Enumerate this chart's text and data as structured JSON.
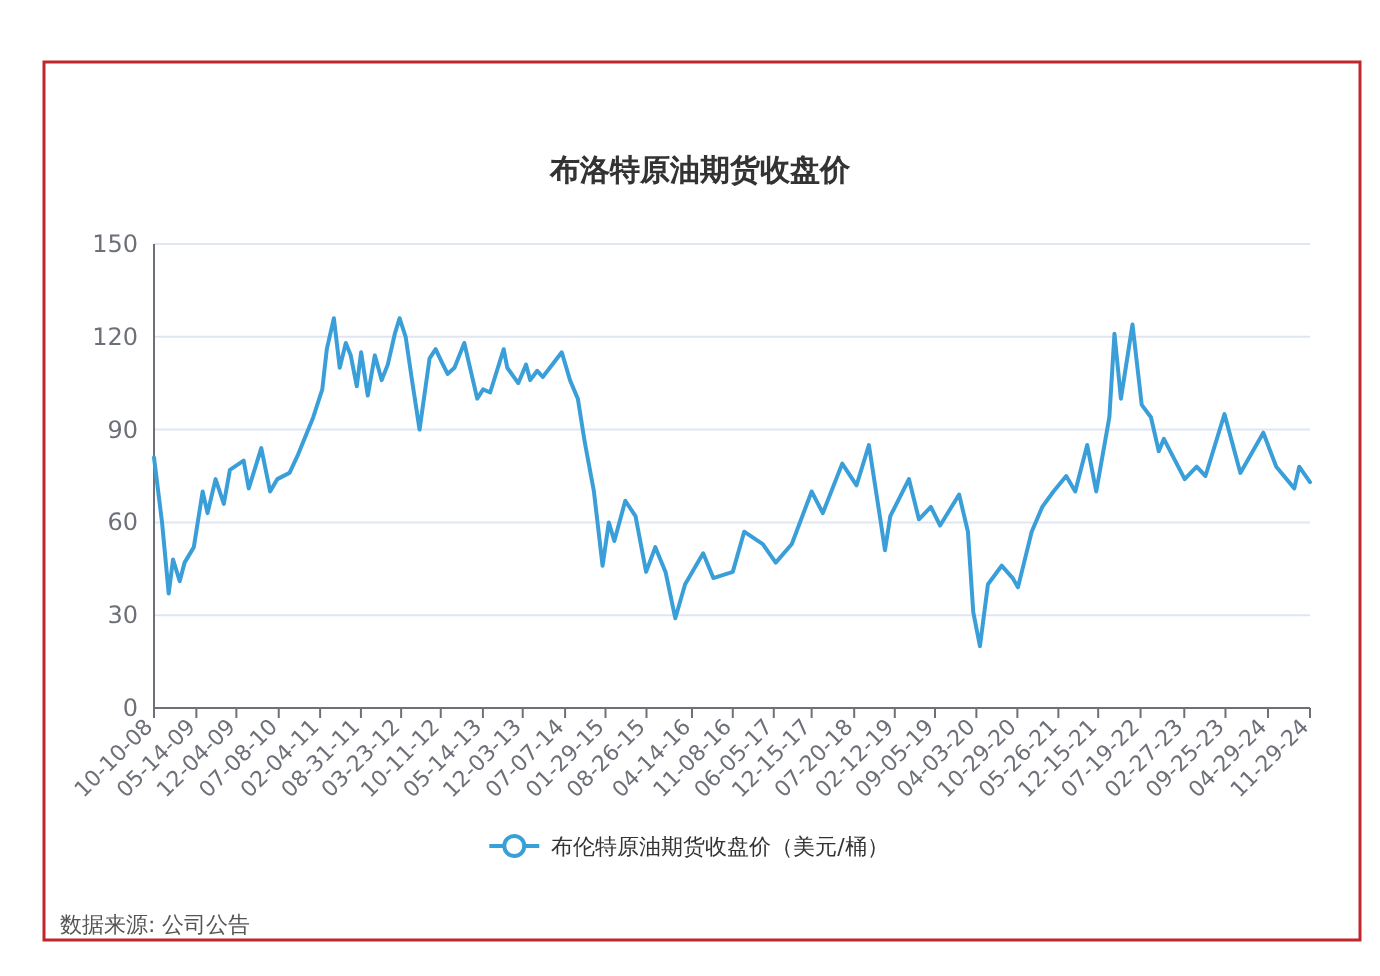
{
  "chart_data": {
    "type": "line",
    "title": "布洛特原油期货收盘价",
    "x": [
      "2008-10-10",
      "2008-11-20",
      "2008-12-24",
      "2009-01-15",
      "2009-02-18",
      "2009-03-15",
      "2009-05-01",
      "2009-06-15",
      "2009-07-10",
      "2009-08-20",
      "2009-10-01",
      "2009-11-01",
      "2010-01-10",
      "2010-02-05",
      "2010-04-10",
      "2010-05-25",
      "2010-07-01",
      "2010-09-01",
      "2010-10-15",
      "2010-12-31",
      "2011-02-15",
      "2011-03-10",
      "2011-04-15",
      "2011-05-15",
      "2011-06-15",
      "2011-07-10",
      "2011-08-10",
      "2011-09-01",
      "2011-10-05",
      "2011-11-10",
      "2011-12-15",
      "2012-01-15",
      "2012-02-20",
      "2012-03-15",
      "2012-04-15",
      "2012-05-15",
      "2012-06-25",
      "2012-08-15",
      "2012-09-15",
      "2012-10-15",
      "2012-11-15",
      "2012-12-20",
      "2013-02-08",
      "2013-04-15",
      "2013-05-15",
      "2013-06-20",
      "2013-08-28",
      "2013-09-15",
      "2013-11-10",
      "2013-12-20",
      "2014-01-10",
      "2014-02-15",
      "2014-03-15",
      "2014-06-20",
      "2014-08-01",
      "2014-09-10",
      "2014-10-15",
      "2014-12-01",
      "2015-01-14",
      "2015-02-15",
      "2015-03-15",
      "2015-05-10",
      "2015-07-01",
      "2015-08-24",
      "2015-10-10",
      "2015-12-01",
      "2016-01-20",
      "2016-03-10",
      "2016-06-10",
      "2016-08-01",
      "2016-11-08",
      "2017-01-05",
      "2017-04-10",
      "2017-06-15",
      "2017-09-05",
      "2017-12-15",
      "2018-02-10",
      "2018-05-20",
      "2018-08-01",
      "2018-10-03",
      "2018-12-05",
      "2018-12-24",
      "2019-01-20",
      "2019-04-25",
      "2019-06-15",
      "2019-08-15",
      "2019-10-01",
      "2020-01-06",
      "2020-02-20",
      "2020-03-18",
      "2020-04-21",
      "2020-06-01",
      "2020-08-10",
      "2020-10-05",
      "2020-11-01",
      "2021-01-10",
      "2021-03-05",
      "2021-05-01",
      "2021-07-05",
      "2021-08-20",
      "2021-10-20",
      "2021-12-05",
      "2022-02-10",
      "2022-03-08",
      "2022-04-10",
      "2022-06-08",
      "2022-07-25",
      "2022-09-10",
      "2022-10-20",
      "2022-11-15",
      "2023-03-01",
      "2023-05-01",
      "2023-06-15",
      "2023-09-20",
      "2023-12-10",
      "2024-04-05",
      "2024-06-10",
      "2024-09-10",
      "2024-10-05",
      "2024-11-29"
    ],
    "series": [
      {
        "name": "布伦特原油期货收盘价（美元/桶）",
        "color": "#3a9fd8",
        "values": [
          81,
          60,
          37,
          48,
          41,
          47,
          52,
          70,
          63,
          74,
          66,
          77,
          80,
          71,
          84,
          70,
          74,
          76,
          82,
          94,
          103,
          116,
          126,
          110,
          118,
          114,
          104,
          115,
          101,
          114,
          106,
          111,
          121,
          126,
          120,
          107,
          90,
          113,
          116,
          112,
          108,
          110,
          118,
          100,
          103,
          102,
          116,
          110,
          105,
          111,
          106,
          109,
          107,
          115,
          106,
          100,
          86,
          70,
          46,
          60,
          54,
          67,
          62,
          44,
          52,
          44,
          29,
          40,
          50,
          42,
          44,
          57,
          53,
          47,
          53,
          70,
          63,
          79,
          72,
          85,
          59,
          51,
          62,
          74,
          61,
          65,
          59,
          69,
          57,
          31,
          20,
          40,
          46,
          42,
          39,
          57,
          65,
          70,
          75,
          70,
          85,
          70,
          94,
          121,
          100,
          124,
          98,
          94,
          83,
          87,
          74,
          78,
          75,
          95,
          76,
          89,
          78,
          71,
          78,
          73
        ]
      }
    ],
    "xlim": [
      "2008-10-10",
      "2024-11-29"
    ],
    "xticks": [
      {
        "value": "2008-10-10",
        "label": "10-10-08"
      },
      {
        "value": "2009-05-14",
        "label": "05-14-09"
      },
      {
        "value": "2009-12-04",
        "label": "12-04-09"
      },
      {
        "value": "2010-07-08",
        "label": "07-08-10"
      },
      {
        "value": "2011-02-04",
        "label": "02-04-11"
      },
      {
        "value": "2011-08-31",
        "label": "08-31-11"
      },
      {
        "value": "2012-03-23",
        "label": "03-23-12"
      },
      {
        "value": "2012-10-11",
        "label": "10-11-12"
      },
      {
        "value": "2013-05-14",
        "label": "05-14-13"
      },
      {
        "value": "2013-12-03",
        "label": "12-03-13"
      },
      {
        "value": "2014-07-07",
        "label": "07-07-14"
      },
      {
        "value": "2015-01-29",
        "label": "01-29-15"
      },
      {
        "value": "2015-08-26",
        "label": "08-26-15"
      },
      {
        "value": "2016-04-14",
        "label": "04-14-16"
      },
      {
        "value": "2016-11-08",
        "label": "11-08-16"
      },
      {
        "value": "2017-06-05",
        "label": "06-05-17"
      },
      {
        "value": "2017-12-15",
        "label": "12-15-17"
      },
      {
        "value": "2018-07-20",
        "label": "07-20-18"
      },
      {
        "value": "2019-02-12",
        "label": "02-12-19"
      },
      {
        "value": "2019-09-05",
        "label": "09-05-19"
      },
      {
        "value": "2020-04-03",
        "label": "04-03-20"
      },
      {
        "value": "2020-10-29",
        "label": "10-29-20"
      },
      {
        "value": "2021-05-26",
        "label": "05-26-21"
      },
      {
        "value": "2021-12-15",
        "label": "12-15-21"
      },
      {
        "value": "2022-07-19",
        "label": "07-19-22"
      },
      {
        "value": "2023-02-27",
        "label": "02-27-23"
      },
      {
        "value": "2023-09-25",
        "label": "09-25-23"
      },
      {
        "value": "2024-04-29",
        "label": "04-29-24"
      },
      {
        "value": "2024-11-29",
        "label": "11-29-24"
      }
    ],
    "ylim": [
      0,
      150
    ],
    "yticks": [
      0,
      30,
      60,
      90,
      120,
      150
    ],
    "grid": "y",
    "legend": "bottom",
    "annotations": [
      "数据来源: 公司公告"
    ]
  }
}
